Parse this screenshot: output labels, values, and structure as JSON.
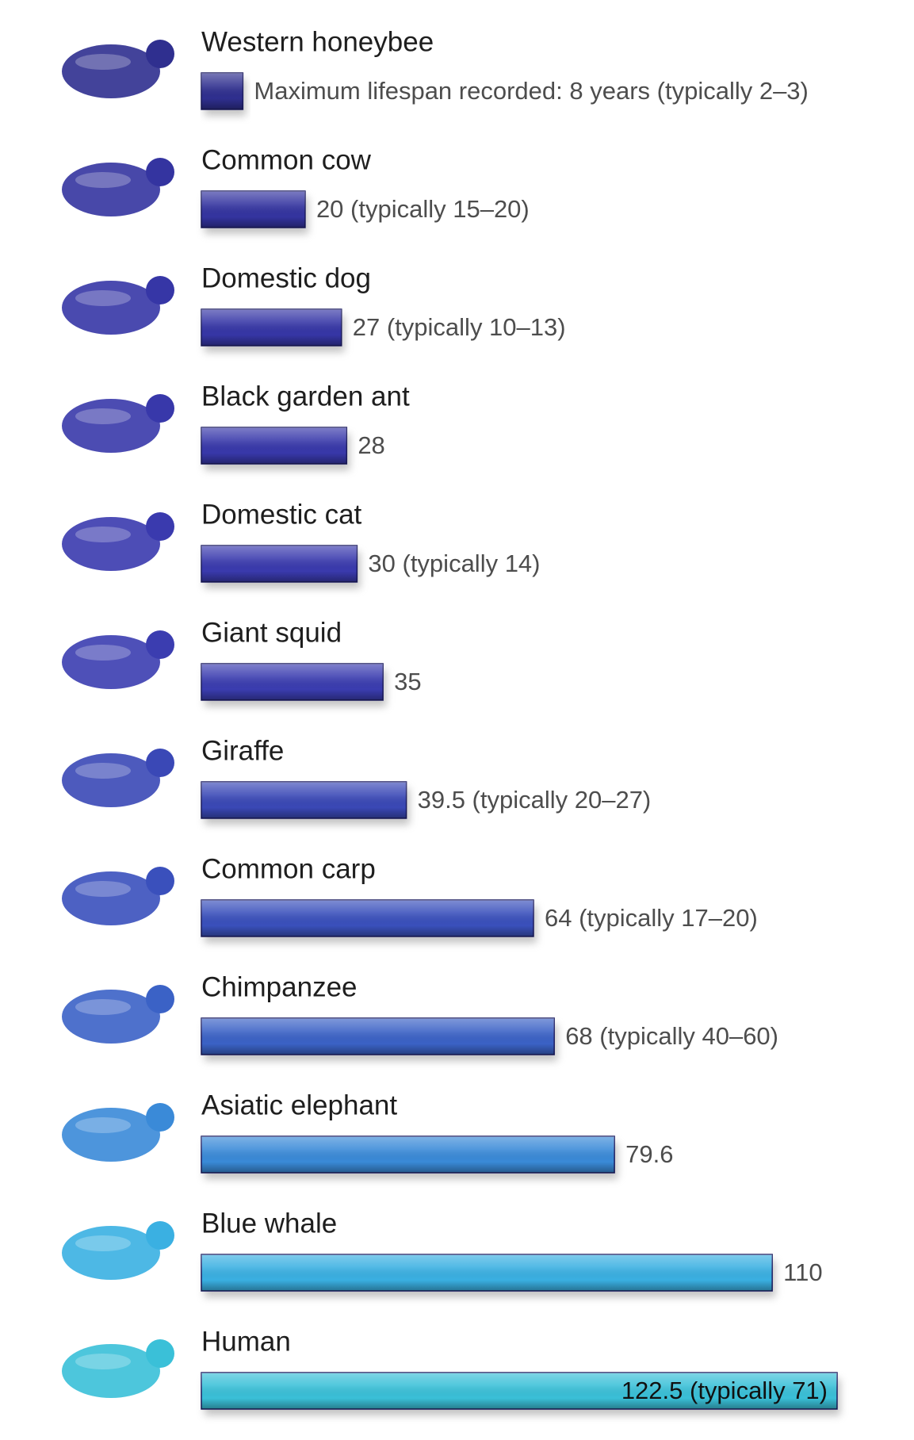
{
  "chart_data": {
    "type": "bar",
    "orientation": "horizontal",
    "categories": [
      "Western honeybee",
      "Common cow",
      "Domestic dog",
      "Black garden ant",
      "Domestic cat",
      "Giant squid",
      "Giraffe",
      "Common carp",
      "Chimpanzee",
      "Asiatic elephant",
      "Blue whale",
      "Human"
    ],
    "values": [
      8,
      20,
      27,
      28,
      30,
      35,
      39.5,
      64,
      68,
      79.6,
      110,
      122.5
    ],
    "value_labels": [
      "Maximum lifespan recorded: 8 years (typically 2–3)",
      "20 (typically 15–20)",
      "27 (typically 10–13)",
      "28",
      "30 (typically 14)",
      "35",
      "39.5 (typically 20–27)",
      "64 (typically 17–20)",
      "68 (typically 40–60)",
      "79.6",
      "110",
      "122.5 (typically 71)"
    ],
    "colors": [
      "#2f2f8f",
      "#3434a0",
      "#3636a6",
      "#3838aa",
      "#3a3aae",
      "#3b3db0",
      "#3a48b6",
      "#3a50bc",
      "#3b62c6",
      "#3a8ad8",
      "#3ab0e2",
      "#3ac0d8"
    ]
  }
}
